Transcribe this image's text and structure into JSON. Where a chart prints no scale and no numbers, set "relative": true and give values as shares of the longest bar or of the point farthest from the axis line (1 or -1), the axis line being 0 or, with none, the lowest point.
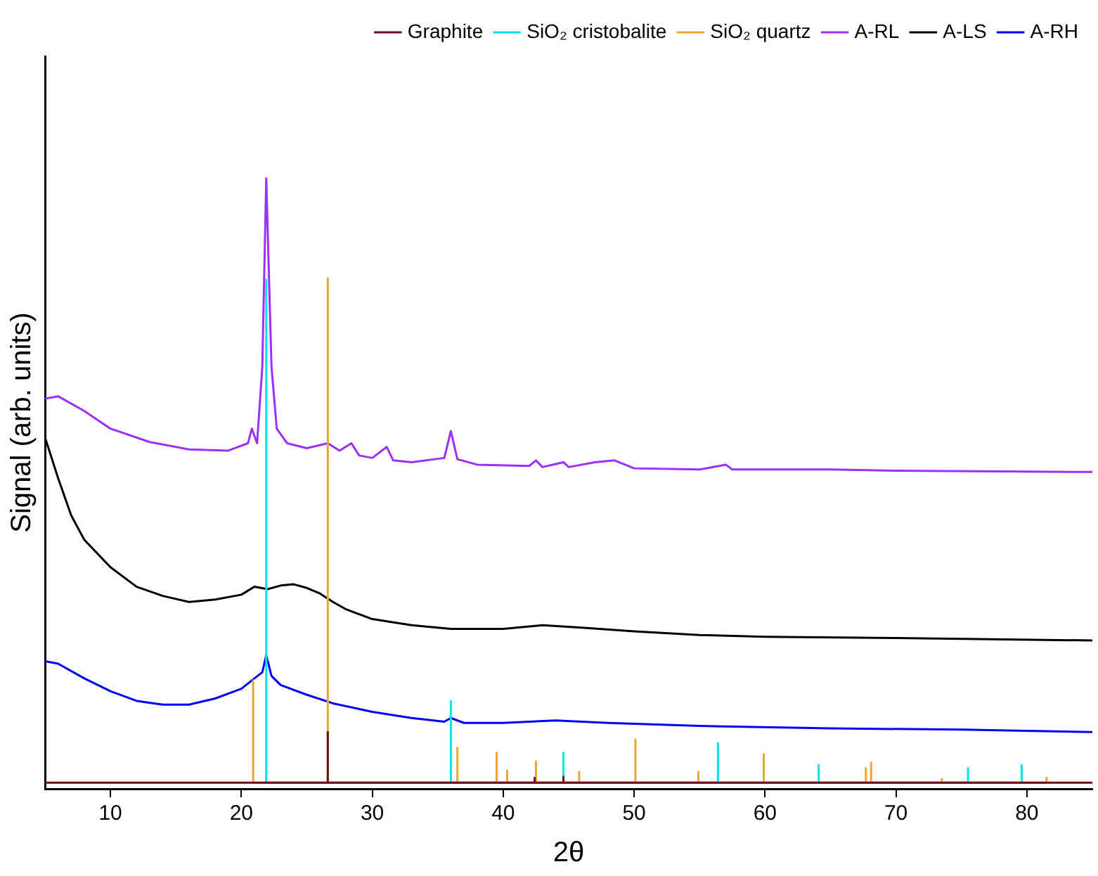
{
  "chart_data": {
    "type": "line",
    "relative": true,
    "xlabel": "2θ",
    "ylabel": "Signal (arb. units)",
    "xlim": [
      5,
      85
    ],
    "xticks": [
      10,
      20,
      30,
      40,
      50,
      60,
      70,
      80
    ],
    "grid": false,
    "legend": "top right",
    "marker": "none",
    "line_style": "solid",
    "series": [
      {
        "name": "Graphite",
        "color": "#6b0f1a",
        "x": [
          5,
          26.6,
          26.6,
          26.6,
          42.4,
          42.4,
          42.4,
          44.6,
          44.6,
          44.6,
          85
        ],
        "values": [
          0.01,
          0.01,
          0.093,
          0.01,
          0.01,
          0.018,
          0.01,
          0.01,
          0.02,
          0.01,
          0.01
        ]
      },
      {
        "name": "SiO₂ cristobalite",
        "color": "#00e5ee",
        "x": [
          21.9,
          21.9,
          21.9,
          36,
          36,
          36,
          44.6,
          44.6,
          44.6,
          56.4,
          56.4,
          56.4,
          64.1,
          64.1,
          64.1,
          75.5,
          75.5,
          75.5,
          79.6,
          79.6,
          79.6
        ],
        "values": [
          0.01,
          0.834,
          0.01,
          0.01,
          0.144,
          0.01,
          0.01,
          0.059,
          0.01,
          0.01,
          0.075,
          0.01,
          0.01,
          0.039,
          0.01,
          0.01,
          0.034,
          0.01,
          0.01,
          0.039,
          0.01
        ]
      },
      {
        "name": "SiO₂ quartz",
        "color": "#e8a735",
        "x": [
          20.9,
          20.9,
          20.9,
          26.6,
          26.6,
          26.6,
          36.5,
          36.5,
          36.5,
          39.5,
          39.5,
          39.5,
          40.3,
          40.3,
          40.3,
          42.5,
          42.5,
          42.5,
          45.8,
          45.8,
          45.8,
          50.1,
          50.1,
          50.1,
          54.9,
          54.9,
          54.9,
          59.9,
          59.9,
          59.9,
          67.7,
          67.7,
          67.7,
          68.1,
          68.1,
          68.1,
          73.5,
          73.5,
          73.5,
          81.5,
          81.5,
          81.5
        ],
        "values": [
          0.01,
          0.178,
          0.01,
          0.01,
          0.836,
          0.01,
          0.01,
          0.067,
          0.01,
          0.01,
          0.059,
          0.01,
          0.01,
          0.03,
          0.01,
          0.01,
          0.045,
          0.01,
          0.01,
          0.028,
          0.01,
          0.01,
          0.081,
          0.01,
          0.01,
          0.028,
          0.01,
          0.01,
          0.057,
          0.01,
          0.01,
          0.034,
          0.01,
          0.01,
          0.043,
          0.01,
          0.01,
          0.016,
          0.01,
          0.01,
          0.018,
          0.01
        ]
      },
      {
        "name": "A-RL",
        "color": "#9b30ff",
        "x": [
          5,
          6,
          8,
          10,
          13,
          16,
          19,
          20.5,
          20.8,
          21.2,
          21.6,
          21.9,
          22.3,
          22.7,
          23.5,
          25,
          26.6,
          27.5,
          28.4,
          29,
          30,
          31.1,
          31.6,
          33,
          35.5,
          36,
          36.5,
          38,
          42,
          42.5,
          43,
          44.6,
          45,
          47,
          48.5,
          50,
          55,
          57,
          57.5,
          65,
          70,
          85
        ],
        "values": [
          0.639,
          0.643,
          0.619,
          0.59,
          0.568,
          0.556,
          0.554,
          0.566,
          0.59,
          0.566,
          0.692,
          1,
          0.692,
          0.59,
          0.566,
          0.558,
          0.566,
          0.554,
          0.566,
          0.546,
          0.542,
          0.56,
          0.538,
          0.535,
          0.542,
          0.586,
          0.54,
          0.531,
          0.529,
          0.538,
          0.527,
          0.535,
          0.527,
          0.535,
          0.538,
          0.525,
          0.523,
          0.531,
          0.523,
          0.523,
          0.521,
          0.519
        ]
      },
      {
        "name": "A-LS",
        "color": "#000000",
        "x": [
          5,
          6,
          7,
          8,
          10,
          12,
          14,
          16,
          18,
          20,
          21,
          22,
          23,
          24,
          25,
          26,
          27,
          28,
          29,
          30,
          33,
          36,
          40,
          43,
          46,
          50,
          55,
          60,
          70,
          85
        ],
        "values": [
          0.576,
          0.509,
          0.448,
          0.408,
          0.363,
          0.331,
          0.316,
          0.306,
          0.31,
          0.318,
          0.331,
          0.327,
          0.333,
          0.335,
          0.329,
          0.32,
          0.306,
          0.294,
          0.286,
          0.278,
          0.268,
          0.262,
          0.262,
          0.268,
          0.264,
          0.258,
          0.252,
          0.249,
          0.247,
          0.243
        ]
      },
      {
        "name": "A-RH",
        "color": "#0000ff",
        "x": [
          5,
          6,
          8,
          10,
          12,
          14,
          16,
          18,
          20,
          21,
          21.6,
          21.9,
          22.3,
          23,
          25,
          27,
          30,
          33,
          35.5,
          36,
          37,
          40,
          44,
          48,
          55,
          65,
          75,
          85
        ],
        "values": [
          0.209,
          0.205,
          0.181,
          0.16,
          0.144,
          0.138,
          0.138,
          0.148,
          0.164,
          0.181,
          0.191,
          0.219,
          0.185,
          0.17,
          0.154,
          0.14,
          0.126,
          0.116,
          0.11,
          0.116,
          0.108,
          0.108,
          0.112,
          0.108,
          0.103,
          0.099,
          0.097,
          0.093
        ]
      }
    ]
  }
}
